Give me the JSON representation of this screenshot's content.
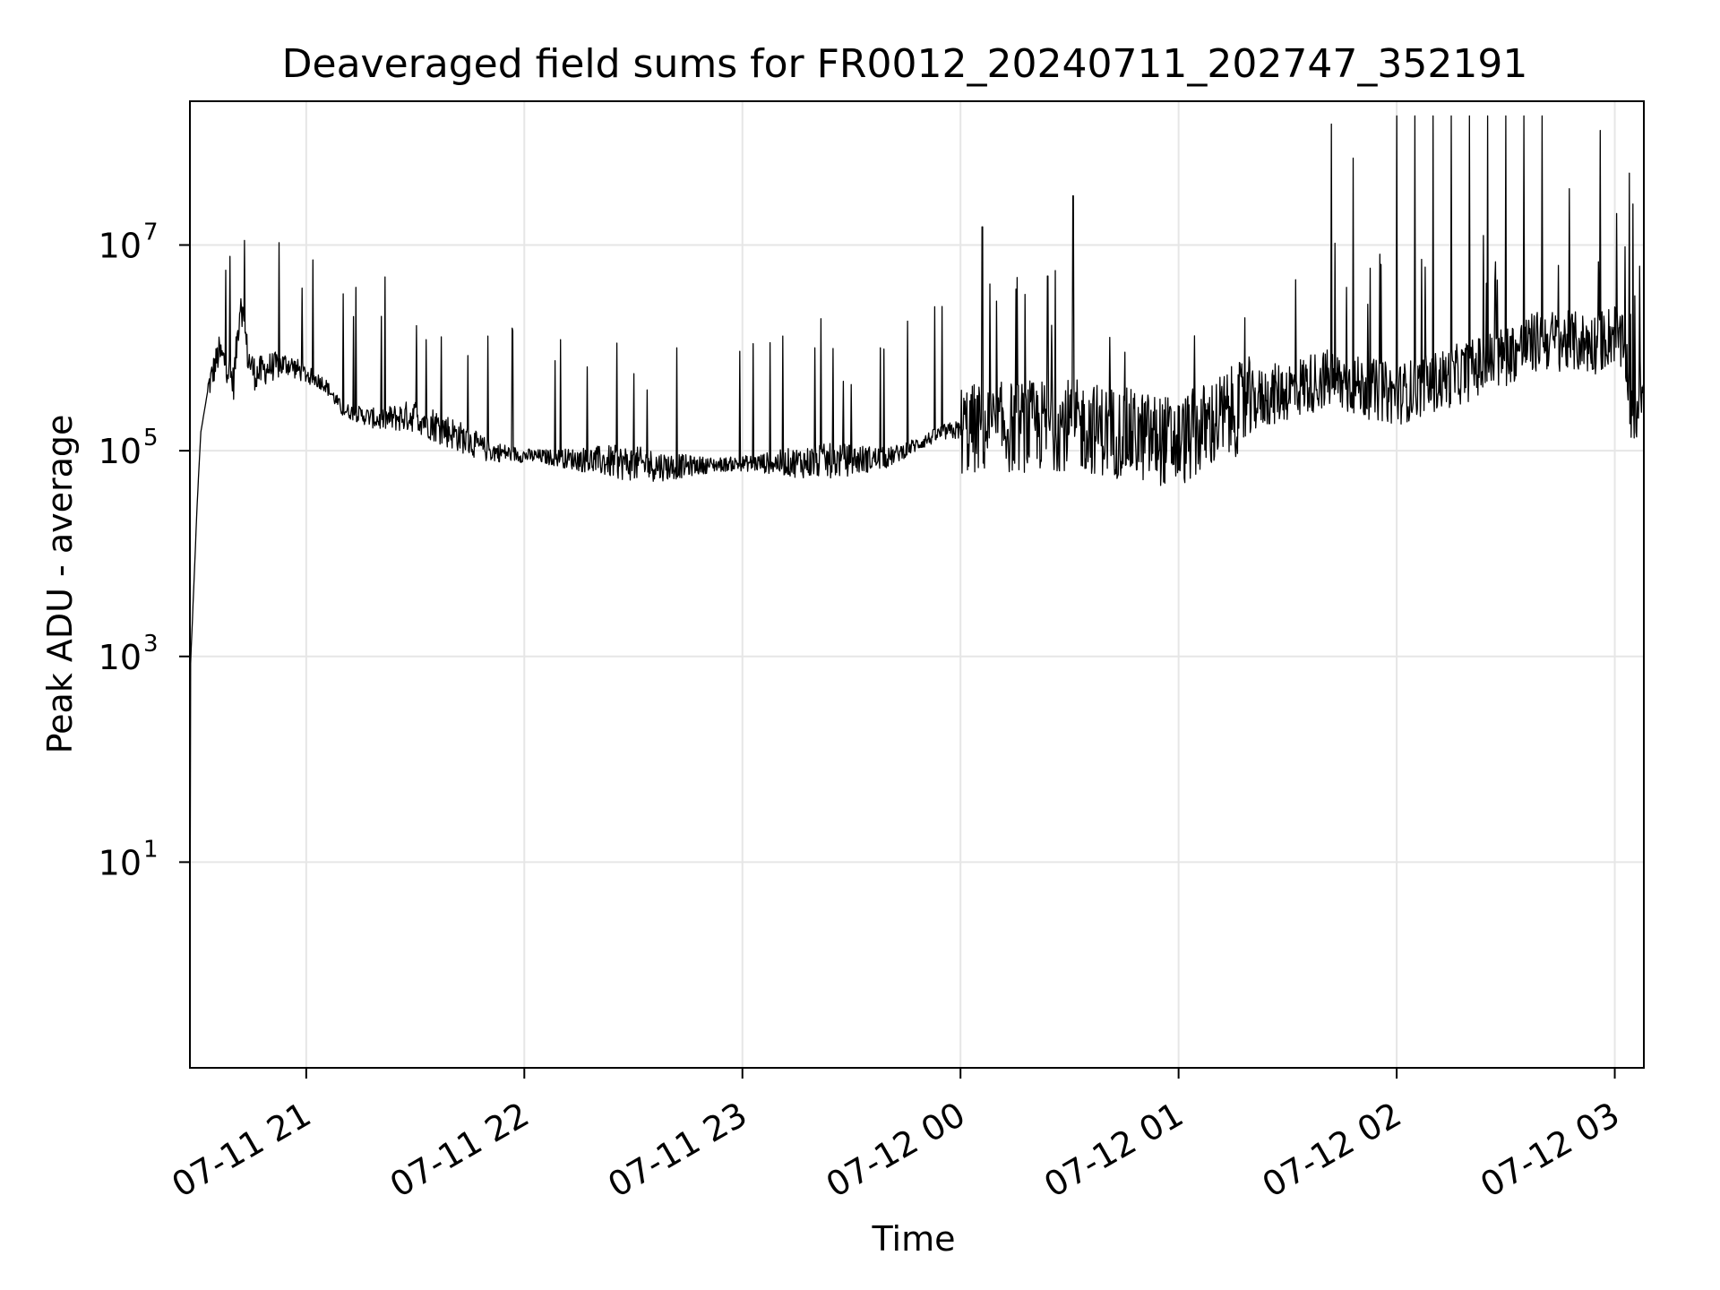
{
  "chart_data": {
    "type": "line",
    "title": "Deaveraged field sums for FR0012_20240711_202747_352191",
    "xlabel": "Time",
    "ylabel": "Peak ADU - average",
    "yscale": "log",
    "ylim": [
      0.1,
      250000000
    ],
    "xlim": [
      "2024-07-11 20:28:00",
      "2024-07-12 03:08:00"
    ],
    "grid": true,
    "line_color": "#000000",
    "x_ticks": [
      {
        "label": "07-11 21",
        "value": "2024-07-11 21:00:00"
      },
      {
        "label": "07-11 22",
        "value": "2024-07-11 22:00:00"
      },
      {
        "label": "07-11 23",
        "value": "2024-07-11 23:00:00"
      },
      {
        "label": "07-12 00",
        "value": "2024-07-12 00:00:00"
      },
      {
        "label": "07-12 01",
        "value": "2024-07-12 01:00:00"
      },
      {
        "label": "07-12 02",
        "value": "2024-07-12 02:00:00"
      },
      {
        "label": "07-12 03",
        "value": "2024-07-12 03:00:00"
      }
    ],
    "y_ticks": [
      {
        "base": "10",
        "exp": "1",
        "value": 10
      },
      {
        "base": "10",
        "exp": "3",
        "value": 1000
      },
      {
        "base": "10",
        "exp": "5",
        "value": 100000
      },
      {
        "base": "10",
        "exp": "7",
        "value": 10000000
      }
    ],
    "series": [
      {
        "values": [
          [
            "2024-07-11 20:28:00",
            0.1
          ],
          [
            "2024-07-11 20:28:00",
            0.3
          ],
          [
            "2024-07-11 20:28:10",
            800
          ],
          [
            "2024-07-11 20:29:00",
            4000
          ],
          [
            "2024-07-11 20:30:00",
            30000
          ],
          [
            "2024-07-11 20:31:00",
            150000
          ],
          [
            "2024-07-11 20:33:00",
            400000
          ],
          [
            "2024-07-11 20:36:00",
            900000
          ],
          [
            "2024-07-11 20:38:00",
            700000
          ],
          [
            "2024-07-11 20:40:00",
            450000
          ],
          [
            "2024-07-11 20:42:00",
            3000000
          ],
          [
            "2024-07-11 20:44:00",
            800000
          ],
          [
            "2024-07-11 20:46:00",
            550000
          ],
          [
            "2024-07-11 20:50:00",
            650000
          ],
          [
            "2024-07-11 20:55:00",
            700000
          ],
          [
            "2024-07-11 21:00:00",
            550000
          ],
          [
            "2024-07-11 21:05:00",
            450000
          ],
          [
            "2024-07-11 21:10:00",
            250000
          ],
          [
            "2024-07-11 21:20:00",
            200000
          ],
          [
            "2024-07-11 21:30:00",
            220000
          ],
          [
            "2024-07-11 21:40:00",
            150000
          ],
          [
            "2024-07-11 21:50:00",
            100000
          ],
          [
            "2024-07-11 22:00:00",
            90000
          ],
          [
            "2024-07-11 22:20:00",
            80000
          ],
          [
            "2024-07-11 22:40:00",
            70000
          ],
          [
            "2024-07-11 23:00:00",
            75000
          ],
          [
            "2024-07-11 23:20:00",
            78000
          ],
          [
            "2024-07-11 23:40:00",
            85000
          ],
          [
            "2024-07-11 23:55:00",
            150000
          ],
          [
            "2024-07-12 00:00:00",
            160000
          ],
          [
            "2024-07-12 00:30:00",
            180000
          ],
          [
            "2024-07-12 01:00:00",
            120000
          ],
          [
            "2024-07-12 01:20:00",
            300000
          ],
          [
            "2024-07-12 01:40:00",
            500000
          ],
          [
            "2024-07-12 02:00:00",
            350000
          ],
          [
            "2024-07-12 02:20:00",
            600000
          ],
          [
            "2024-07-12 02:40:00",
            1200000
          ],
          [
            "2024-07-12 02:55:00",
            1100000
          ],
          [
            "2024-07-12 03:00:00",
            1400000
          ],
          [
            "2024-07-12 03:03:00",
            900000
          ],
          [
            "2024-07-12 03:05:00",
            150000
          ],
          [
            "2024-07-12 03:07:00",
            400000
          ],
          [
            "2024-07-12 03:08:00",
            400000
          ]
        ],
        "spikes": [
          [
            "2024-07-11 20:42:00",
            3000000
          ],
          [
            "2024-07-11 21:33:00",
            1200000
          ],
          [
            "2024-07-11 21:50:00",
            1300000
          ],
          [
            "2024-07-11 22:10:00",
            1200000
          ],
          [
            "2024-07-11 22:42:00",
            1000000
          ],
          [
            "2024-07-11 23:03:00",
            1100000
          ],
          [
            "2024-07-11 23:20:00",
            1000000
          ],
          [
            "2024-07-11 23:38:00",
            1000000
          ],
          [
            "2024-07-12 00:06:00",
            15000000
          ],
          [
            "2024-07-12 00:24:00",
            5000000
          ],
          [
            "2024-07-12 00:31:00",
            30000000
          ],
          [
            "2024-07-12 01:42:00",
            150000000
          ],
          [
            "2024-07-12 01:48:00",
            70000000
          ],
          [
            "2024-07-12 02:00:00",
            180000000
          ],
          [
            "2024-07-12 02:05:00",
            180000000
          ],
          [
            "2024-07-12 02:10:00",
            180000000
          ],
          [
            "2024-07-12 02:15:00",
            180000000
          ],
          [
            "2024-07-12 02:20:00",
            180000000
          ],
          [
            "2024-07-12 02:25:00",
            180000000
          ],
          [
            "2024-07-12 02:30:00",
            180000000
          ],
          [
            "2024-07-12 02:35:00",
            180000000
          ],
          [
            "2024-07-12 02:40:00",
            180000000
          ],
          [
            "2024-07-12 02:56:00",
            130000000
          ],
          [
            "2024-07-12 03:00:00",
            2500000
          ],
          [
            "2024-07-12 03:04:00",
            50000000
          ],
          [
            "2024-07-12 03:05:00",
            25000000
          ]
        ]
      }
    ]
  }
}
